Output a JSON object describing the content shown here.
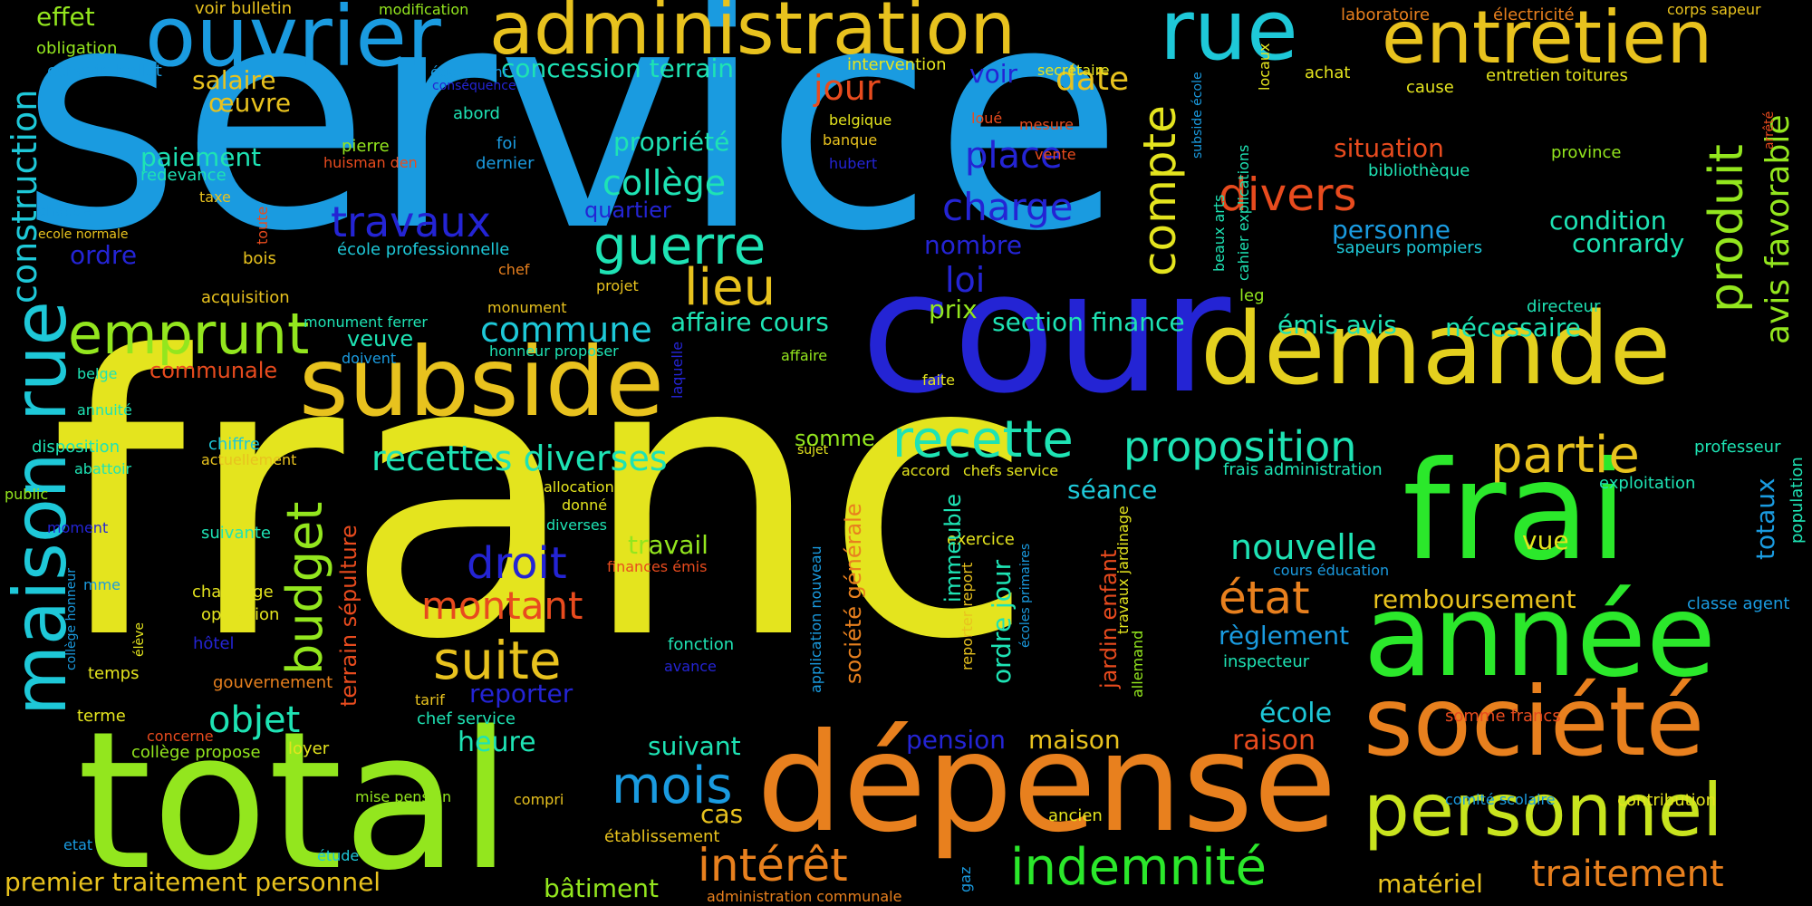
{
  "palette": {
    "background": "#000000",
    "sky": "#1a9be0",
    "blue": "#2424d4",
    "cyan": "#1ec8d8",
    "teal": "#1ee3b4",
    "green": "#2be82b",
    "lime": "#93e61e",
    "yellow": "#e4e41e",
    "gold": "#e8c21e",
    "orange": "#e8801e",
    "red": "#e84b1e"
  },
  "words": {
    "w1": "service",
    "w2": "franc",
    "w3": "cour",
    "w4": "demande",
    "w5": "subside",
    "w6": "total",
    "w7": "dépense",
    "w8": "frai",
    "w9": "année",
    "w10": "société",
    "w11": "personnel",
    "w12": "ouvrier",
    "w13": "administration",
    "w14": "rue",
    "w15": "entretien",
    "w16": "maison",
    "w17": "rue",
    "w18": "construction",
    "w19": "produit",
    "w20": "avis favorable",
    "w21": "compte",
    "w22": "budget",
    "w23": "emprunt",
    "w24": "recette",
    "w25": "proposition",
    "w26": "travaux",
    "w27": "guerre",
    "w28": "lieu",
    "w29": "divers",
    "w30": "charge",
    "w31": "place",
    "w32": "état",
    "w33": "nouvelle",
    "w34": "partie",
    "w35": "indemnité",
    "w36": "intérêt",
    "w37": "mois",
    "w38": "suite",
    "w39": "montant",
    "w40": "droit",
    "w41": "objet",
    "w42": "recettes diverses",
    "w43": "collège",
    "w44": "commune",
    "w45": "affaire cours",
    "w46": "section finance",
    "w47": "émis avis",
    "w48": "nécessaire",
    "w49": "traitement",
    "w50": "matériel",
    "w51": "premier traitement personnel",
    "w52": "bâtiment",
    "w53": "remboursement",
    "w54": "règlement",
    "w55": "école",
    "w56": "somme francs",
    "w57": "raison",
    "w58": "pension",
    "w59": "maison",
    "w60": "suivant",
    "w61": "heure",
    "w62": "reporter",
    "w63": "cas",
    "w64": "travail",
    "w65": "somme",
    "w66": "séance",
    "w67": "loi",
    "w68": "nombre",
    "w69": "prix",
    "w70": "date",
    "w71": "jour",
    "w72": "voir",
    "w73": "propriété",
    "w74": "concession terrain",
    "w75": "situation",
    "w76": "condition",
    "w77": "conrardy",
    "w78": "personne",
    "w79": "sapeurs pompiers",
    "w80": "bibliothèque",
    "w81": "province",
    "w82": "paiement",
    "w83": "redevance",
    "w84": "salaire",
    "w85": "œuvre",
    "w86": "effet",
    "w87": "obligation",
    "w88": "echevin hallet",
    "w89": "voir bulletin",
    "w90": "modification",
    "w91": "également",
    "w92": "conséquence",
    "w93": "abord",
    "w94": "pierre",
    "w95": "huisman den",
    "w96": "foi",
    "w97": "dernier",
    "w98": "quartier",
    "w99": "école professionnelle",
    "w100": "ordre",
    "w101": "chaque",
    "w102": "ecole normale",
    "w103": "taxe",
    "w104": "toute",
    "w105": "bois",
    "w106": "chef",
    "w107": "acquisition",
    "w108": "projet",
    "w109": "monument",
    "w110": "monument ferrer",
    "w111": "veuve",
    "w112": "honneur proposer",
    "w113": "doivent",
    "w114": "communale",
    "w115": "belge",
    "w116": "annuité",
    "w117": "disposition",
    "w118": "chiffre",
    "w119": "actuellement",
    "w120": "abattoir",
    "w121": "public",
    "w122": "moment",
    "w123": "suivante",
    "w124": "chauffage",
    "w125": "opération",
    "w126": "hôtel",
    "w127": "temps",
    "w128": "gouvernement",
    "w129": "terme",
    "w130": "concerne",
    "w131": "collège propose",
    "w132": "loyer",
    "w133": "mise pension",
    "w134": "compri",
    "w135": "établissement",
    "w136": "etat",
    "w137": "étude",
    "w138": "administration communale",
    "w139": "ancien",
    "w140": "comité scolaire",
    "w141": "contribution",
    "w142": "classe agent",
    "w143": "population",
    "w144": "totaux",
    "w145": "vue",
    "w146": "inspecteur",
    "w147": "cours éducation",
    "w148": "exploitation",
    "w149": "professeur",
    "w150": "frais administration",
    "w151": "directeur",
    "w152": "leg",
    "w153": "beaux arts",
    "w154": "cahier explications",
    "w155": "subside école",
    "w156": "locaux",
    "w157": "achat",
    "w158": "cause",
    "w159": "entretien toitures",
    "w160": "laboratoire",
    "w161": "électricité",
    "w162": "corps sapeur",
    "w163": "arrêté",
    "w164": "secrétaire",
    "w165": "intervention",
    "w166": "belgique",
    "w167": "banque",
    "w168": "loué",
    "w169": "mesure",
    "w170": "hubert",
    "w171": "vente",
    "w172": "affaire",
    "w173": "faite",
    "w174": "laquelle",
    "w175": "sujet",
    "w176": "accord",
    "w177": "chefs service",
    "w178": "allocation",
    "w179": "donné",
    "w180": "diverses",
    "w181": "finances émis",
    "w182": "exercice",
    "w183": "fonction",
    "w184": "avance",
    "w185": "application nouveau",
    "w186": "tarif",
    "w187": "chef service",
    "w188": "société générale",
    "w189": "terrain sépulture",
    "w190": "immeuble",
    "w191": "ordre jour",
    "w192": "reporter report",
    "w193": "écoles primaires",
    "w194": "jardin enfant",
    "w195": "travaux jardinage",
    "w196": "allemand",
    "w197": "gaz",
    "w198": "collège honneur",
    "w199": "élève",
    "w200": "mme"
  }
}
